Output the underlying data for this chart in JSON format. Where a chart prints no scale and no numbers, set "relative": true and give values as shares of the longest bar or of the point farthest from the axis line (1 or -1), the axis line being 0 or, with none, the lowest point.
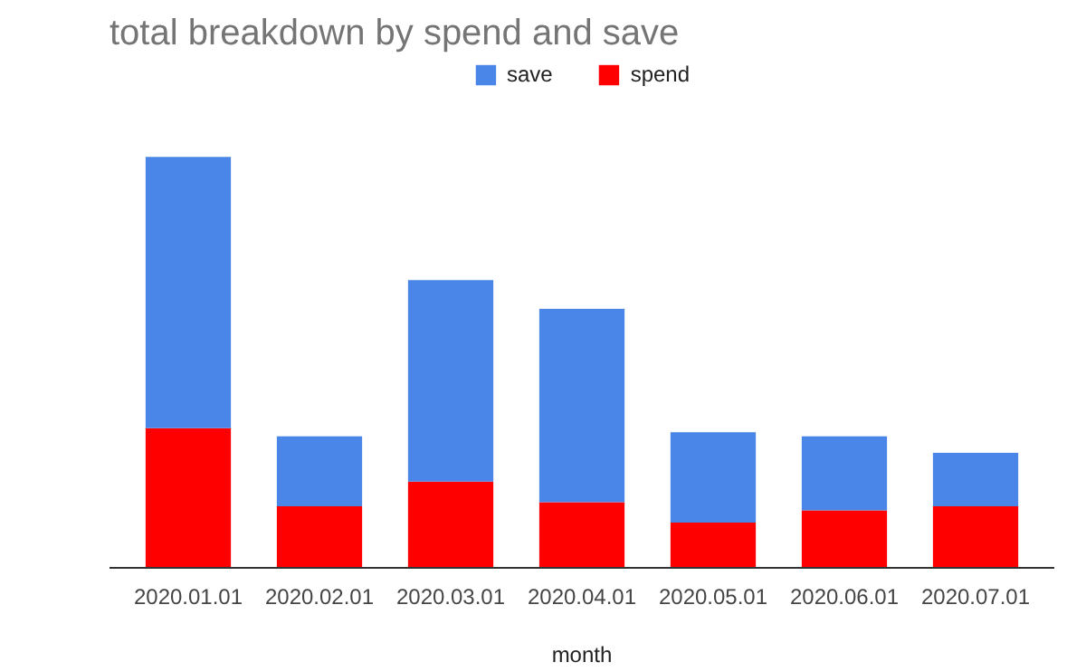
{
  "chart_data": {
    "type": "bar",
    "title": "total breakdown by spend and save",
    "xlabel": "month",
    "categories": [
      "2020.01.01",
      "2020.02.01",
      "2020.03.01",
      "2020.04.01",
      "2020.05.01",
      "2020.06.01",
      "2020.07.01"
    ],
    "stacked": true,
    "relative": true,
    "legend": "top",
    "series": [
      {
        "name": "spend",
        "color": "#ff0000",
        "values": [
          0.34,
          0.15,
          0.21,
          0.16,
          0.11,
          0.14,
          0.15
        ]
      },
      {
        "name": "save",
        "color": "#4a86e8",
        "values": [
          0.66,
          0.17,
          0.49,
          0.47,
          0.22,
          0.18,
          0.13
        ]
      }
    ]
  }
}
